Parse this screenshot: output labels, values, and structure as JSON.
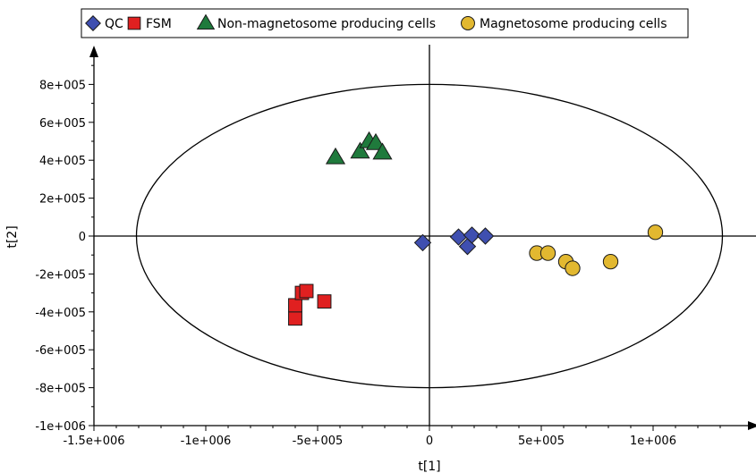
{
  "chart_data": {
    "type": "scatter",
    "xlabel": "t[1]",
    "ylabel": "t[2]",
    "xlim": [
      -1500000,
      1500000
    ],
    "ylim": [
      -1000000,
      1000000
    ],
    "xticks": [
      -1500000,
      -1000000,
      -500000,
      0,
      500000,
      1000000
    ],
    "xtick_labels": [
      "-1.5e+006",
      "-1e+006",
      "-5e+005",
      "0",
      "5e+005",
      "1e+006"
    ],
    "yticks": [
      -1000000,
      -800000,
      -600000,
      -400000,
      -200000,
      0,
      200000,
      400000,
      600000,
      800000
    ],
    "ytick_labels": [
      "-1e+006",
      "-8e+005",
      "-6e+005",
      "-4e+005",
      "-2e+005",
      "0",
      "2e+005",
      "4e+005",
      "6e+005",
      "8e+005"
    ],
    "grid": false,
    "legend_position": "top",
    "ellipse": {
      "center": [
        0,
        0
      ],
      "rx": 1310000,
      "ry": 800000
    },
    "series": [
      {
        "name": "QC",
        "marker": "diamond",
        "color": "#3f4fb0",
        "points": [
          [
            -30000,
            -35000
          ],
          [
            130000,
            -5000
          ],
          [
            170000,
            -55000
          ],
          [
            190000,
            5000
          ],
          [
            250000,
            0
          ]
        ]
      },
      {
        "name": "FSM",
        "marker": "square",
        "color": "#e02020",
        "points": [
          [
            -600000,
            -435000
          ],
          [
            -600000,
            -365000
          ],
          [
            -570000,
            -300000
          ],
          [
            -550000,
            -290000
          ],
          [
            -470000,
            -345000
          ]
        ]
      },
      {
        "name": "Non-magnetosome producing cells",
        "marker": "triangle",
        "color": "#1f7a3c",
        "points": [
          [
            -420000,
            415000
          ],
          [
            -310000,
            445000
          ],
          [
            -270000,
            500000
          ],
          [
            -240000,
            490000
          ],
          [
            -210000,
            440000
          ]
        ]
      },
      {
        "name": "Magnetosome producing cells",
        "marker": "circle",
        "color": "#e2b830",
        "points": [
          [
            480000,
            -90000
          ],
          [
            530000,
            -90000
          ],
          [
            610000,
            -135000
          ],
          [
            640000,
            -170000
          ],
          [
            810000,
            -135000
          ],
          [
            1010000,
            20000
          ]
        ]
      }
    ]
  }
}
